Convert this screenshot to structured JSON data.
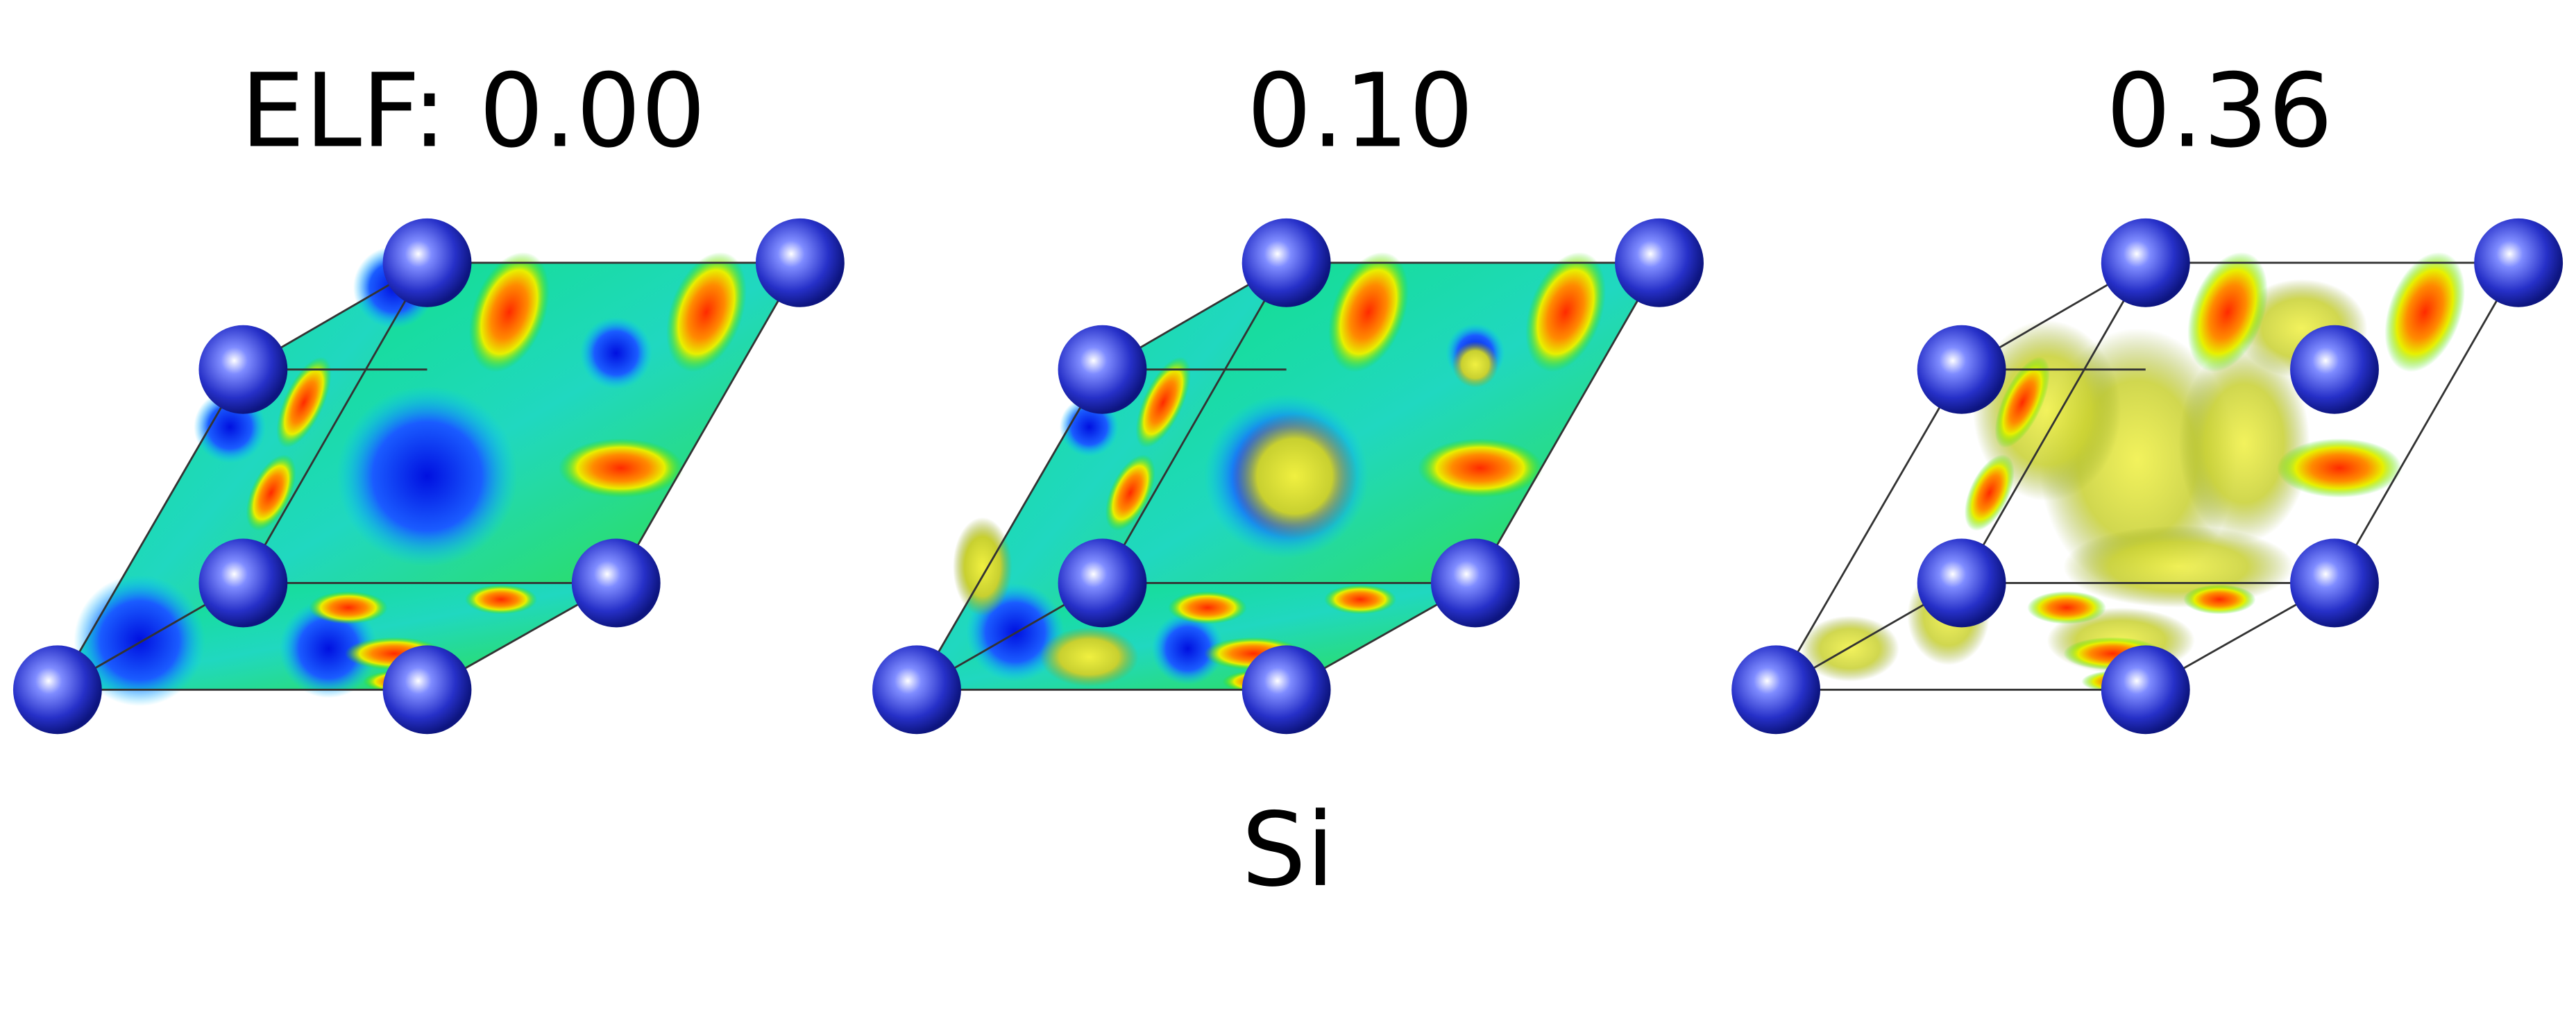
{
  "panels": [
    {
      "label": "ELF: 0.00"
    },
    {
      "label": "0.10"
    },
    {
      "label": "0.36"
    }
  ],
  "element": "Si"
}
